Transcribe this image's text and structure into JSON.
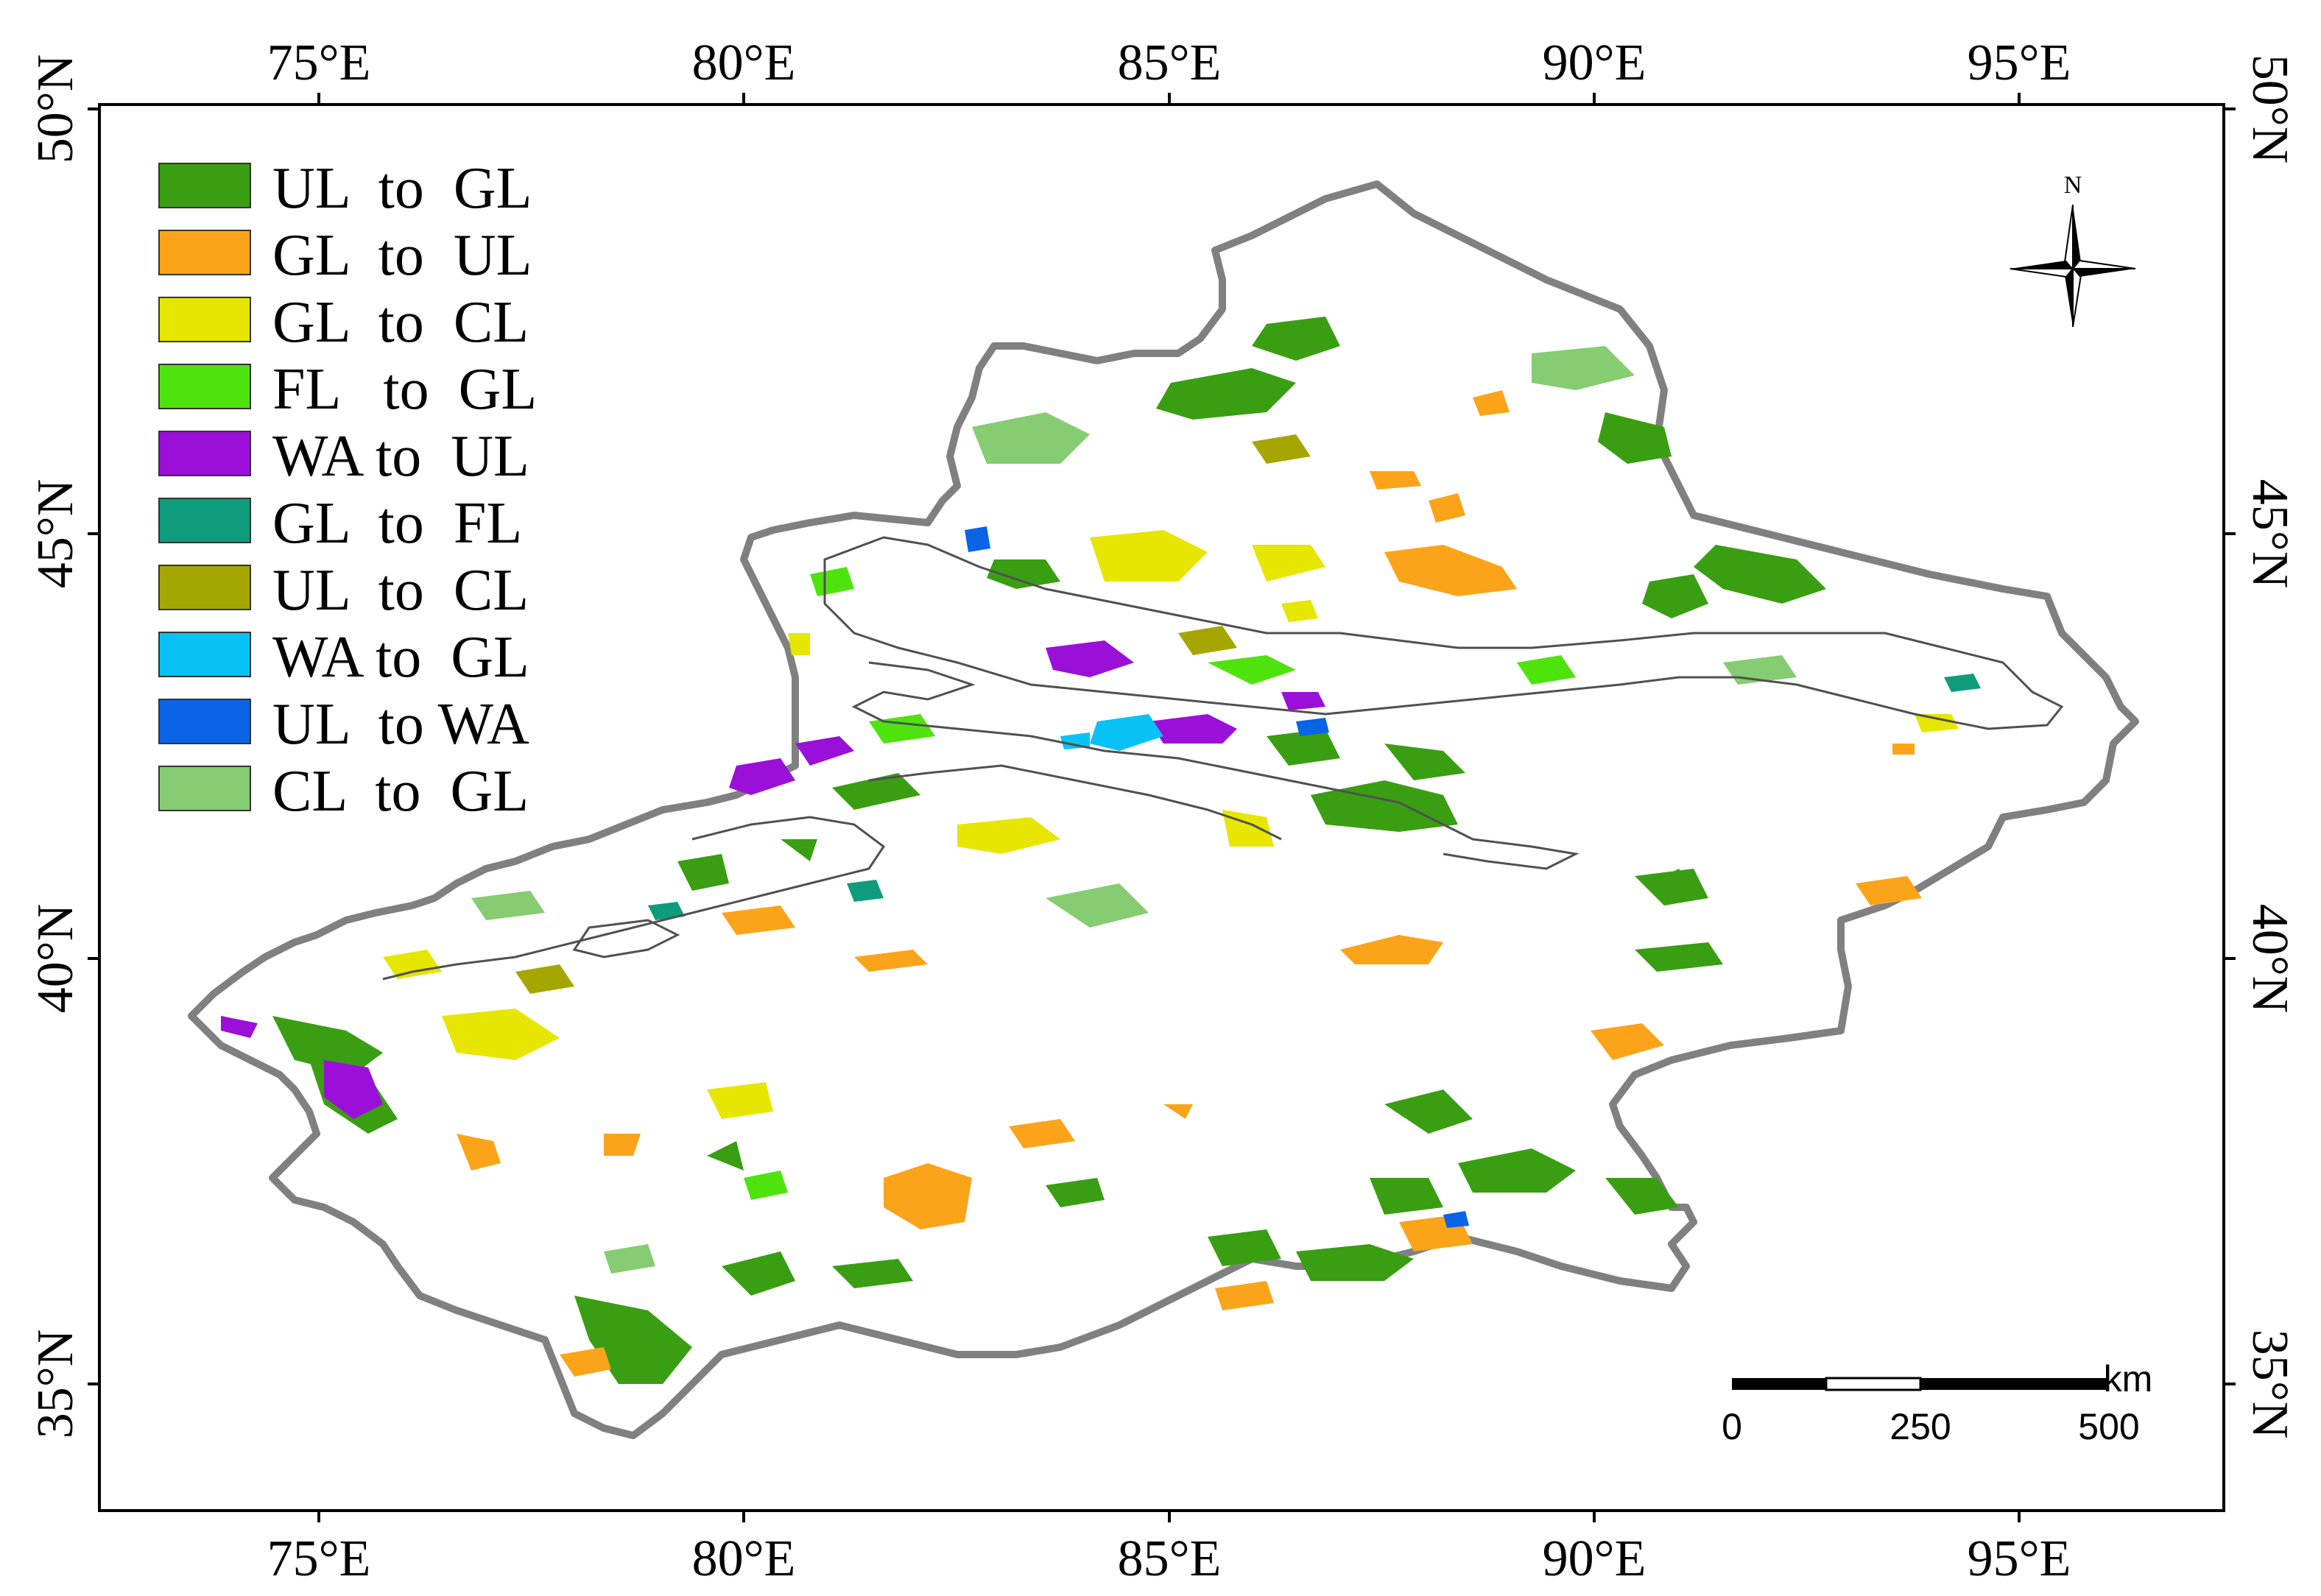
{
  "axes": {
    "longitude_ticks": [
      "75°E",
      "80°E",
      "85°E",
      "90°E",
      "95°E"
    ],
    "latitude_ticks": [
      "50°N",
      "45°N",
      "40°N",
      "35°N"
    ]
  },
  "legend": [
    {
      "label": "UL  to  GL",
      "color": "#3a9e12"
    },
    {
      "label": "GL  to  UL",
      "color": "#fba41a"
    },
    {
      "label": "GL  to  CL",
      "color": "#e6e600"
    },
    {
      "label": "FL   to  GL",
      "color": "#4fe30e"
    },
    {
      "label": "WA to  UL",
      "color": "#9a10d8"
    },
    {
      "label": "GL  to  FL",
      "color": "#0f9c7c"
    },
    {
      "label": "UL  to  CL",
      "color": "#a6a600"
    },
    {
      "label": "WA to  GL",
      "color": "#08c2f5"
    },
    {
      "label": "UL  to WA",
      "color": "#0b63e6"
    },
    {
      "label": "CL  to  GL",
      "color": "#86cc72"
    }
  ],
  "north_arrow": {
    "label": "N"
  },
  "scale_bar": {
    "unit": "km",
    "labels": [
      "0",
      "250",
      "500"
    ]
  },
  "colors": {
    "frame": "#000000",
    "boundary": "#808080",
    "inner_boundary": "#505050",
    "desert": "#ffffff"
  }
}
